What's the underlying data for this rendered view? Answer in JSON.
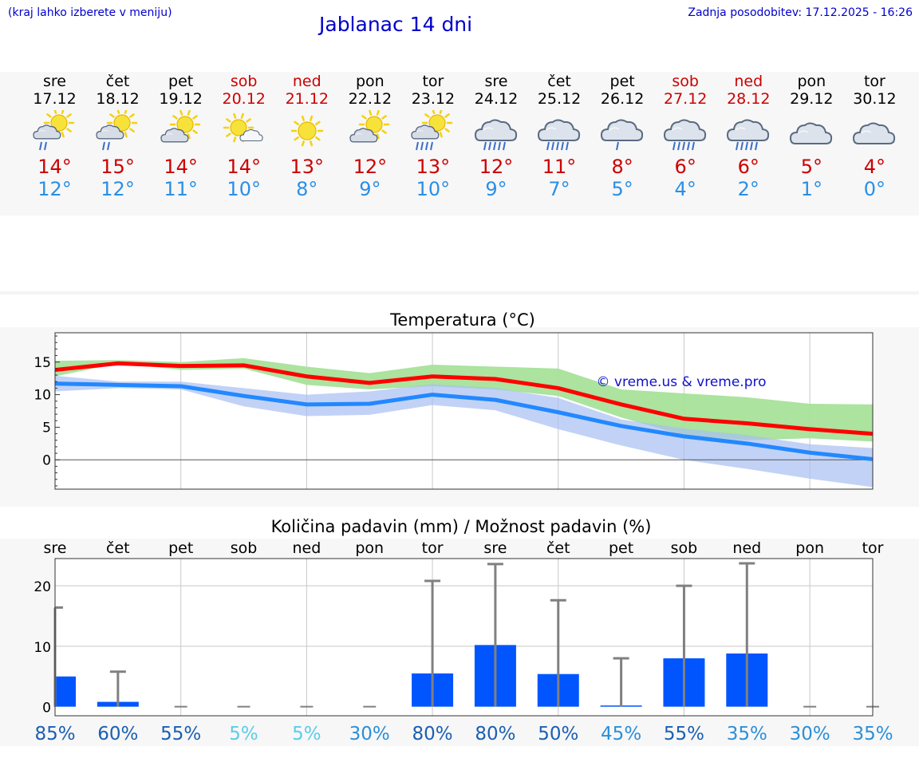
{
  "header": {
    "note": "(kraj lahko izberete v meniju)",
    "title": "Jablanac 14 dni",
    "updated": "Zadnja posodobitev: 17.12.2025 - 16:26"
  },
  "colors": {
    "title_blue": "#0000cc",
    "max_red": "#cc0000",
    "min_blue": "#2a8fe6",
    "line_red": "#ff0000",
    "line_blue": "#2288ff",
    "band_green": "#a6e29a",
    "band_blue": "#a8bff2",
    "bar_blue": "#0055ff"
  },
  "days": [
    {
      "name": "sre",
      "date": "17.12",
      "weekend": false,
      "icon": "partly-cloudy-light-rain-icon",
      "max": "14°",
      "min": "12°"
    },
    {
      "name": "čet",
      "date": "18.12",
      "weekend": false,
      "icon": "partly-cloudy-light-rain-icon",
      "max": "15°",
      "min": "12°"
    },
    {
      "name": "pet",
      "date": "19.12",
      "weekend": false,
      "icon": "partly-cloudy-icon",
      "max": "14°",
      "min": "11°"
    },
    {
      "name": "sob",
      "date": "20.12",
      "weekend": true,
      "icon": "sun-small-cloud-icon",
      "max": "14°",
      "min": "10°"
    },
    {
      "name": "ned",
      "date": "21.12",
      "weekend": true,
      "icon": "sun-icon",
      "max": "13°",
      "min": "8°"
    },
    {
      "name": "pon",
      "date": "22.12",
      "weekend": false,
      "icon": "partly-cloudy-icon",
      "max": "12°",
      "min": "9°"
    },
    {
      "name": "tor",
      "date": "23.12",
      "weekend": false,
      "icon": "partly-cloudy-rain-icon",
      "max": "13°",
      "min": "10°"
    },
    {
      "name": "sre",
      "date": "24.12",
      "weekend": false,
      "icon": "cloudy-rain-icon",
      "max": "12°",
      "min": "9°"
    },
    {
      "name": "čet",
      "date": "25.12",
      "weekend": false,
      "icon": "cloudy-rain-icon",
      "max": "11°",
      "min": "7°"
    },
    {
      "name": "pet",
      "date": "26.12",
      "weekend": false,
      "icon": "cloudy-light-rain-icon",
      "max": "8°",
      "min": "5°"
    },
    {
      "name": "sob",
      "date": "27.12",
      "weekend": true,
      "icon": "cloudy-rain-icon",
      "max": "6°",
      "min": "4°"
    },
    {
      "name": "ned",
      "date": "28.12",
      "weekend": true,
      "icon": "cloudy-rain-icon",
      "max": "6°",
      "min": "2°"
    },
    {
      "name": "pon",
      "date": "29.12",
      "weekend": false,
      "icon": "cloudy-icon",
      "max": "5°",
      "min": "1°"
    },
    {
      "name": "tor",
      "date": "30.12",
      "weekend": false,
      "icon": "cloudy-icon",
      "max": "4°",
      "min": "0°"
    }
  ],
  "chart_data": [
    {
      "type": "line",
      "title": "Temperatura (°C)",
      "watermark": "© vreme.us & vreme.pro",
      "x": [
        0,
        1,
        2,
        3,
        4,
        5,
        6,
        7,
        8,
        9,
        10,
        11,
        12,
        13
      ],
      "yticks": [
        "15",
        "10",
        "5",
        "0"
      ],
      "ylim": [
        -4.5,
        19.5
      ],
      "series": [
        {
          "name": "max",
          "values": [
            13.8,
            14.8,
            14.4,
            14.5,
            12.8,
            11.8,
            12.8,
            12.4,
            11.0,
            8.5,
            6.3,
            5.6,
            4.7,
            4.0
          ]
        },
        {
          "name": "min",
          "values": [
            11.7,
            11.5,
            11.3,
            9.8,
            8.5,
            8.6,
            10.0,
            9.2,
            7.3,
            5.2,
            3.6,
            2.5,
            1.1,
            0.1
          ]
        }
      ],
      "bands": [
        {
          "name": "max-range",
          "low": [
            12.8,
            14.8,
            13.8,
            14.0,
            11.5,
            10.8,
            11.3,
            10.8,
            9.8,
            6.5,
            3.8,
            3.0,
            3.3,
            2.8
          ],
          "high": [
            15.2,
            15.3,
            15.0,
            15.6,
            14.3,
            13.3,
            14.6,
            14.3,
            14.0,
            10.8,
            10.2,
            9.6,
            8.6,
            8.5
          ]
        },
        {
          "name": "min-range",
          "low": [
            10.5,
            11.0,
            10.8,
            8.2,
            6.7,
            6.9,
            8.4,
            7.6,
            4.7,
            2.2,
            0.0,
            -1.4,
            -2.9,
            -4.2
          ],
          "high": [
            12.9,
            12.0,
            12.0,
            11.0,
            10.0,
            10.5,
            11.6,
            11.0,
            9.5,
            6.2,
            4.8,
            3.8,
            2.4,
            1.8
          ]
        }
      ]
    },
    {
      "type": "bar",
      "title": "Količina padavin (mm) / Možnost padavin (%)",
      "categories": [
        "sre",
        "čet",
        "pet",
        "sob",
        "ned",
        "pon",
        "tor",
        "sre",
        "čet",
        "pet",
        "sob",
        "ned",
        "pon",
        "tor"
      ],
      "yticks": [
        "20",
        "10",
        "0"
      ],
      "ylim": [
        -1.5,
        24.5
      ],
      "values": [
        5.0,
        0.8,
        0,
        0,
        0,
        0,
        5.5,
        10.2,
        5.4,
        0.2,
        8.0,
        8.8,
        0,
        0
      ],
      "error_high": [
        16.4,
        5.8,
        0,
        0,
        0,
        0,
        20.8,
        23.6,
        17.6,
        8.0,
        20.0,
        23.7,
        0,
        0
      ],
      "probabilities": [
        "85%",
        "60%",
        "55%",
        "5%",
        "5%",
        "30%",
        "80%",
        "80%",
        "50%",
        "45%",
        "55%",
        "35%",
        "30%",
        "35%"
      ],
      "probability_colors": [
        "#1a5fb4",
        "#1a5fb4",
        "#1a5fb4",
        "#5bcde8",
        "#5bcde8",
        "#2b8fd8",
        "#1a5fb4",
        "#1a5fb4",
        "#1a5fb4",
        "#2b8fd8",
        "#1a5fb4",
        "#2b8fd8",
        "#2b8fd8",
        "#2b8fd8"
      ]
    }
  ]
}
